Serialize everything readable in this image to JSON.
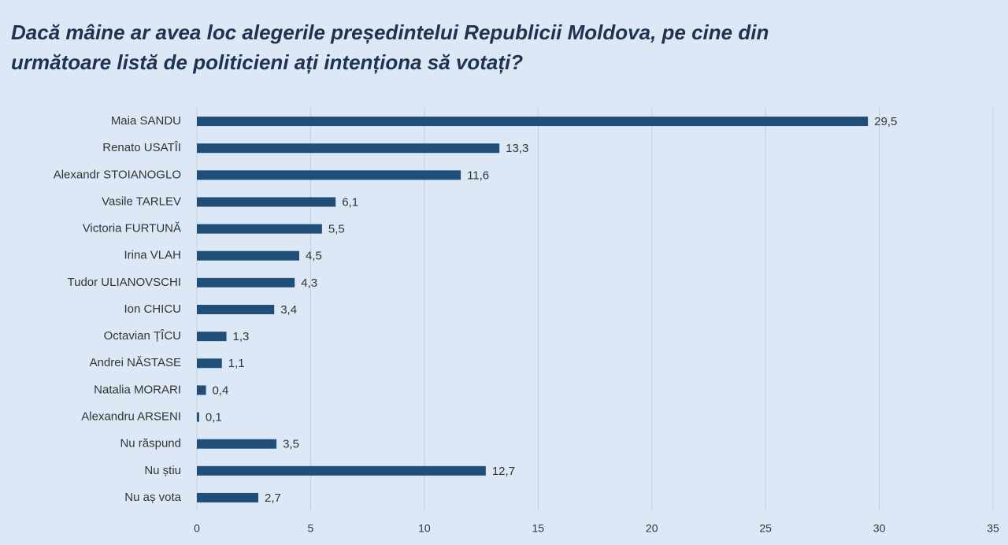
{
  "chart_data": {
    "type": "bar",
    "orientation": "horizontal",
    "title": "Dacă mâine ar avea loc alegerile președintelui Republicii Moldova, pe cine din următoare listă de politicieni ați intenționa să votați?",
    "categories": [
      "Maia SANDU",
      "Renato USATÎI",
      "Alexandr STOIANOGLO",
      "Vasile TARLEV",
      "Victoria FURTUNĂ",
      "Irina VLAH",
      "Tudor ULIANOVSCHI",
      "Ion CHICU",
      "Octavian ȚÎCU",
      "Andrei NĂSTASE",
      "Natalia MORARI",
      "Alexandru ARSENI",
      "Nu răspund",
      "Nu știu",
      "Nu aș vota"
    ],
    "values": [
      29.5,
      13.3,
      11.6,
      6.1,
      5.5,
      4.5,
      4.3,
      3.4,
      1.3,
      1.1,
      0.4,
      0.1,
      3.5,
      12.7,
      2.7
    ],
    "value_labels": [
      "29,5",
      "13,3",
      "11,6",
      "6,1",
      "5,5",
      "4,5",
      "4,3",
      "3,4",
      "1,3",
      "1,1",
      "0,4",
      "0,1",
      "3,5",
      "12,7",
      "2,7"
    ],
    "color": "#1f4e79",
    "xlim": [
      0,
      35
    ],
    "xticks": [
      0,
      5,
      10,
      15,
      20,
      25,
      30,
      35
    ],
    "grid": true
  }
}
